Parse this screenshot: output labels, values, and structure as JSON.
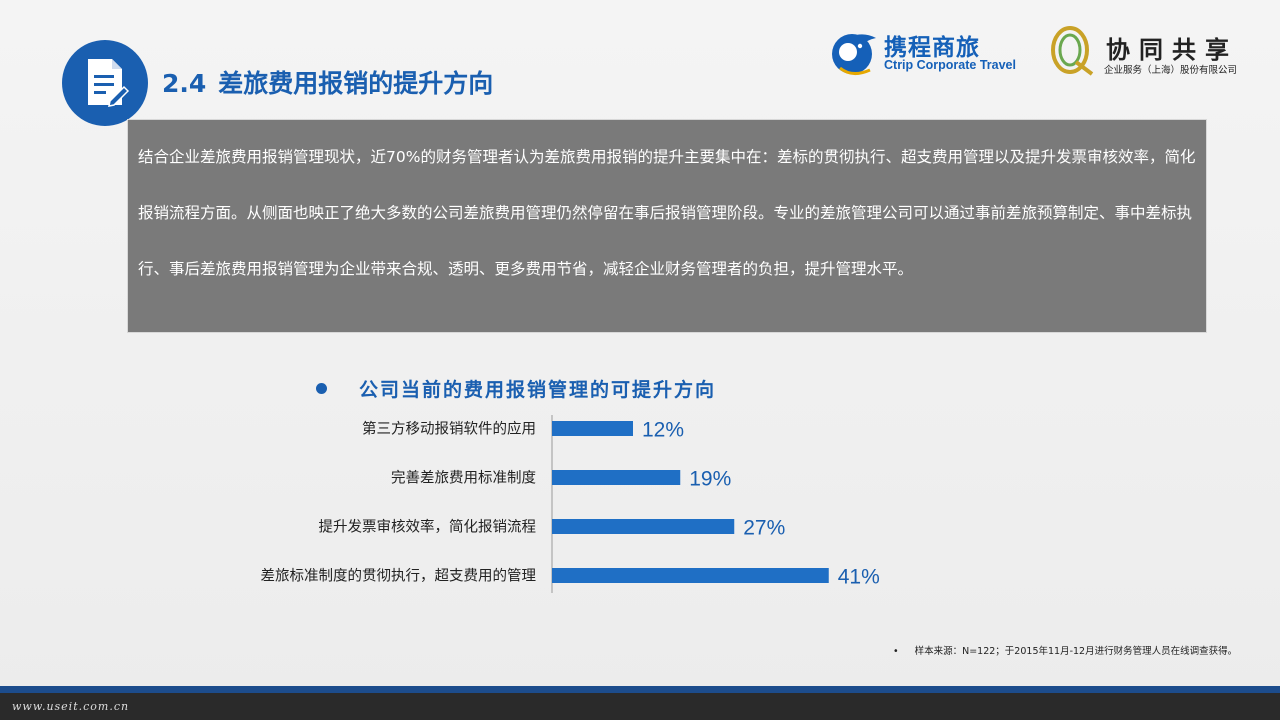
{
  "header": {
    "section_number": "2.4",
    "title": "差旅费用报销的提升方向"
  },
  "logos": {
    "ctrip_cn": "携程商旅",
    "ctrip_en": "Ctrip Corporate Travel",
    "partner_cn": "协同共享",
    "partner_sub": "企业服务（上海）股份有限公司"
  },
  "summary_text": "结合企业差旅费用报销管理现状，近70%的财务管理者认为差旅费用报销的提升主要集中在：差标的贯彻执行、超支费用管理以及提升发票审核效率，简化报销流程方面。从侧面也映正了绝大多数的公司差旅费用管理仍然停留在事后报销管理阶段。专业的差旅管理公司可以通过事前差旅预算制定、事中差标执行、事后差旅费用报销管理为企业带来合规、透明、更多费用节省，减轻企业财务管理者的负担，提升管理水平。",
  "chart_title": "公司当前的费用报销管理的可提升方向",
  "chart_data": {
    "type": "bar",
    "orientation": "horizontal",
    "categories": [
      "第三方移动报销软件的应用",
      "完善差旅费用标准制度",
      "提升发票审核效率，简化报销流程",
      "差旅标准制度的贯彻执行，超支费用的管理"
    ],
    "values": [
      12,
      19,
      27,
      41
    ],
    "value_labels": [
      "12%",
      "19%",
      "27%",
      "41%"
    ],
    "bar_color": "#1f6fc5",
    "label_color": "#1a5fb0"
  },
  "source_note": {
    "bullet": "•",
    "text": "样本来源：N=122；于2015年11月-12月进行财务管理人员在线调查获得。"
  },
  "footer": {
    "url": "www.useit.com.cn"
  }
}
